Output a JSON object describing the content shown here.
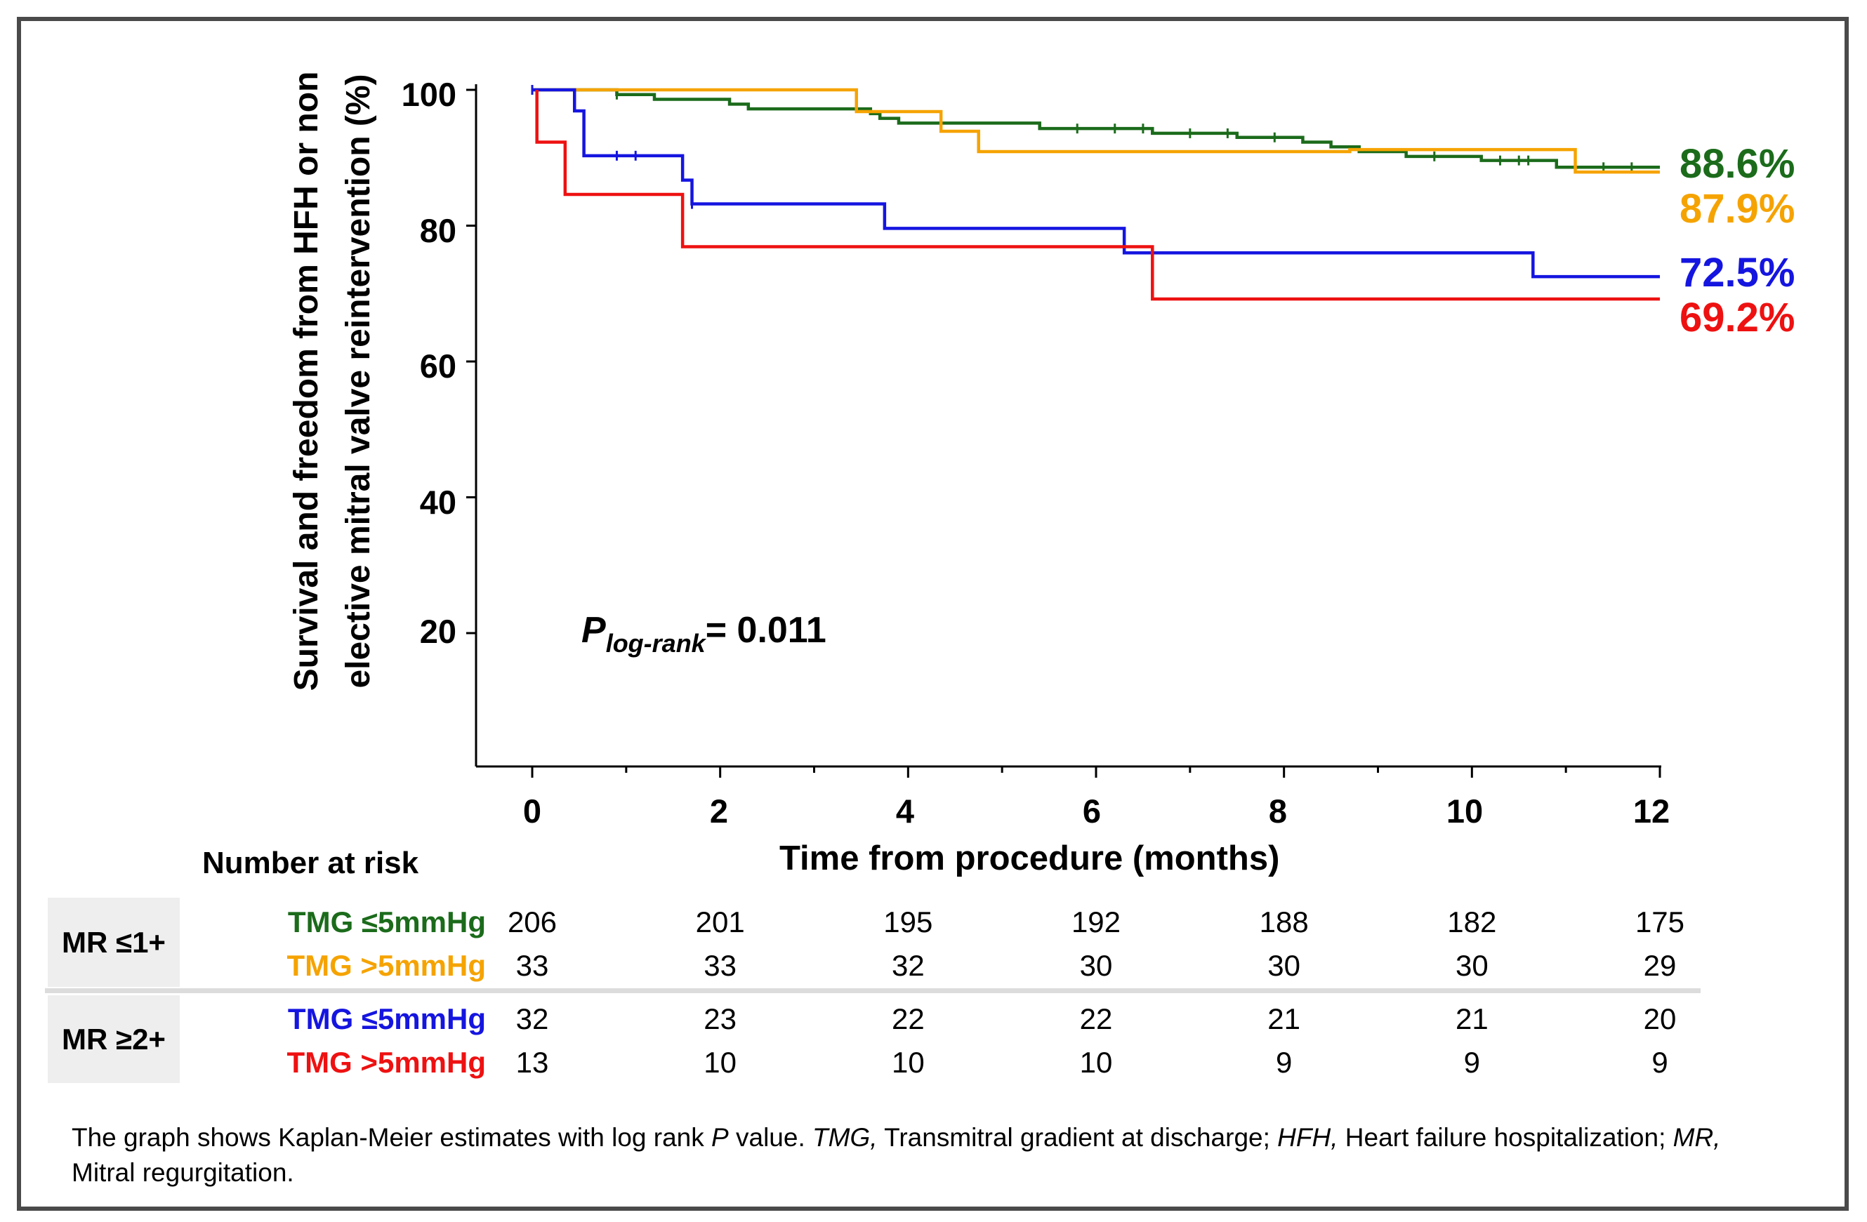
{
  "chart_data": {
    "type": "line",
    "subtype": "kaplan-meier step curves",
    "ylabel_lines": [
      "Survival and freedom from HFH or non",
      "elective mitral valve reintervention (%)"
    ],
    "xlabel": "Time from procedure (months)",
    "xlim": [
      0,
      12
    ],
    "ylim": [
      0,
      100
    ],
    "x_ticks": [
      "0",
      "2",
      "4",
      "6",
      "8",
      "10",
      "12"
    ],
    "y_ticks": [
      "100",
      "80",
      "60",
      "40",
      "20"
    ],
    "grid": false,
    "annotation": {
      "p_symbol": "P",
      "p_subscript": "log-rank",
      "p_value": "= 0.011"
    },
    "series": [
      {
        "id": "mr1-tmg-low",
        "color": "#1b6b1b",
        "end_label": "88.6%",
        "steps": [
          [
            0,
            100
          ],
          [
            0.9,
            99.3
          ],
          [
            1.3,
            98.6
          ],
          [
            2.1,
            97.9
          ],
          [
            2.3,
            97.2
          ],
          [
            3.6,
            96.5
          ],
          [
            3.7,
            95.8
          ],
          [
            3.9,
            95.1
          ],
          [
            5.4,
            94.3
          ],
          [
            6.6,
            93.6
          ],
          [
            7.5,
            93.0
          ],
          [
            8.2,
            92.3
          ],
          [
            8.5,
            91.6
          ],
          [
            8.8,
            90.9
          ],
          [
            9.3,
            90.2
          ],
          [
            10.1,
            89.6
          ],
          [
            10.9,
            88.6
          ]
        ],
        "end_x": 12,
        "censor_x": [
          0.9,
          5.8,
          6.2,
          6.5,
          7.0,
          7.4,
          7.9,
          9.6,
          10.3,
          10.5,
          10.6,
          11.4,
          11.7
        ]
      },
      {
        "id": "mr1-tmg-high",
        "color": "#f5a300",
        "end_label": "87.9%",
        "steps": [
          [
            0,
            100
          ],
          [
            3.45,
            96.8
          ],
          [
            4.35,
            93.9
          ],
          [
            4.75,
            90.9
          ],
          [
            8.7,
            91.2
          ],
          [
            11.1,
            87.9
          ]
        ],
        "end_x": 12,
        "censor_x": []
      },
      {
        "id": "mr2-tmg-low",
        "color": "#1515e0",
        "end_label": "72.5%",
        "steps": [
          [
            0,
            100
          ],
          [
            0.45,
            96.9
          ],
          [
            0.55,
            90.3
          ],
          [
            1.6,
            86.7
          ],
          [
            1.7,
            83.2
          ],
          [
            3.75,
            79.6
          ],
          [
            6.3,
            76.0
          ],
          [
            10.65,
            72.5
          ]
        ],
        "end_x": 12,
        "censor_x": [
          0.0,
          0.9,
          1.1,
          1.7
        ]
      },
      {
        "id": "mr2-tmg-high",
        "color": "#ee1111",
        "end_label": "69.2%",
        "steps": [
          [
            0.05,
            100
          ],
          [
            0.05,
            92.3
          ],
          [
            0.35,
            84.6
          ],
          [
            1.6,
            76.9
          ],
          [
            6.6,
            69.2
          ]
        ],
        "end_x": 12,
        "censor_x": []
      }
    ]
  },
  "risk_table": {
    "title": "Number at risk",
    "groups": [
      {
        "label": "MR ≤1+",
        "rows": [
          {
            "label": "TMG ≤5mmHg",
            "color": "#1b6b1b",
            "values": [
              "206",
              "201",
              "195",
              "192",
              "188",
              "182",
              "175"
            ]
          },
          {
            "label": "TMG >5mmHg",
            "color": "#f5a300",
            "values": [
              "33",
              "33",
              "32",
              "30",
              "30",
              "30",
              "29"
            ]
          }
        ]
      },
      {
        "label": "MR ≥2+",
        "rows": [
          {
            "label": "TMG ≤5mmHg",
            "color": "#1515e0",
            "values": [
              "32",
              "23",
              "22",
              "22",
              "21",
              "21",
              "20"
            ]
          },
          {
            "label": "TMG >5mmHg",
            "color": "#ee1111",
            "values": [
              "13",
              "10",
              "10",
              "10",
              "9",
              "9",
              "9"
            ]
          }
        ]
      }
    ]
  },
  "caption": {
    "p1": "The graph shows Kaplan-Meier estimates with log rank ",
    "p_italic": "P",
    "p2": " value. ",
    "tmg_abbr": "TMG,",
    "tmg_def": " Transmitral gradient at discharge; ",
    "hfh_abbr": "HFH,",
    "hfh_def": " Heart failure hospitalization; ",
    "mr_abbr": "MR,",
    "mr_def": " Mitral regurgitation."
  }
}
